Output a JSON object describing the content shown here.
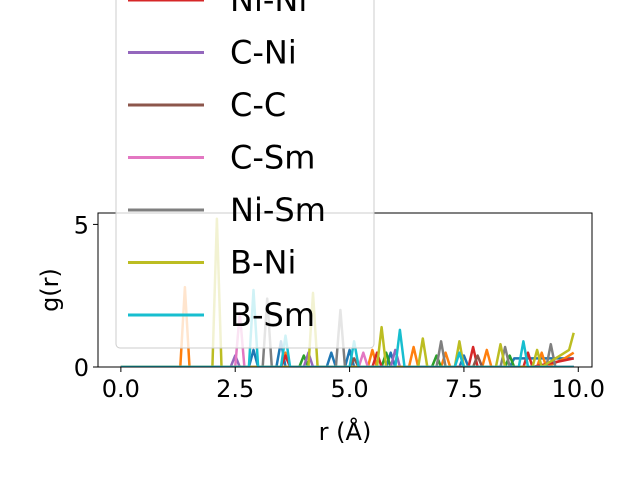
{
  "chart_data": {
    "type": "line",
    "title": "",
    "xlabel": "r (Å)",
    "ylabel": "g(r)",
    "xlim": [
      -0.5,
      10.3
    ],
    "ylim": [
      0,
      5.4
    ],
    "xticks": [
      0.0,
      2.5,
      5.0,
      7.5,
      10.0
    ],
    "xtick_labels": [
      "0.0",
      "2.5",
      "5.0",
      "7.5",
      "10.0"
    ],
    "yticks": [
      0,
      5
    ],
    "ytick_labels": [
      "0",
      "5"
    ],
    "grid": false,
    "legend_position": "upper-left",
    "series": [
      {
        "name": "",
        "color": "#1f77b4",
        "x": [
          0.0,
          2.8,
          2.9,
          3.0,
          3.1,
          3.4,
          3.5,
          3.6,
          4.5,
          4.6,
          4.7,
          4.9,
          5.0,
          5.1,
          5.8,
          5.9,
          6.0,
          6.1,
          7.4,
          7.5,
          7.6,
          8.5,
          8.6,
          9.9
        ],
        "y": [
          0.0,
          0.0,
          0.6,
          0.0,
          0.0,
          0.0,
          0.9,
          0.0,
          0.0,
          0.5,
          0.0,
          0.0,
          0.6,
          0.0,
          0.0,
          0.5,
          0.0,
          0.0,
          0.0,
          0.4,
          0.0,
          0.0,
          0.3,
          0.3
        ]
      },
      {
        "name": "",
        "color": "#ff7f0e",
        "x": [
          0.0,
          1.3,
          1.4,
          1.5,
          1.8,
          3.5,
          3.6,
          3.7,
          5.4,
          5.5,
          5.6,
          6.3,
          6.4,
          6.5,
          7.0,
          7.1,
          7.2,
          7.9,
          8.0,
          8.1,
          9.1,
          9.2,
          9.3,
          9.7,
          9.9
        ],
        "y": [
          0.0,
          0.0,
          2.8,
          0.0,
          0.0,
          0.0,
          0.5,
          0.0,
          0.0,
          0.6,
          0.0,
          0.0,
          0.7,
          0.0,
          0.0,
          0.5,
          0.0,
          0.0,
          0.6,
          0.0,
          0.0,
          0.5,
          0.0,
          0.3,
          0.5
        ]
      },
      {
        "name": "",
        "color": "#2ca02c",
        "x": [
          0.0,
          3.9,
          4.0,
          4.1,
          5.7,
          5.8,
          5.9,
          6.8,
          6.9,
          7.0,
          8.4,
          8.5,
          8.6,
          9.9
        ],
        "y": [
          0.0,
          0.0,
          0.4,
          0.0,
          0.0,
          0.5,
          0.0,
          0.0,
          0.4,
          0.0,
          0.0,
          0.4,
          0.0,
          0.0
        ]
      },
      {
        "name": "Ni-Ni",
        "color": "#d62728",
        "x": [
          0.0,
          3.5,
          3.6,
          3.7,
          5.5,
          5.6,
          5.7,
          7.6,
          7.7,
          7.8,
          8.8,
          8.9,
          9.0,
          9.9
        ],
        "y": [
          0.0,
          0.0,
          0.4,
          0.0,
          0.0,
          0.5,
          0.0,
          0.0,
          0.7,
          0.0,
          0.0,
          0.5,
          0.0,
          0.3
        ]
      },
      {
        "name": "C-Ni",
        "color": "#9467bd",
        "x": [
          0.0,
          2.4,
          2.5,
          2.6,
          4.0,
          4.1,
          4.2,
          5.9,
          6.0,
          6.1,
          9.9
        ],
        "y": [
          0.0,
          0.0,
          0.4,
          0.0,
          0.0,
          0.5,
          0.0,
          0.0,
          0.6,
          0.0,
          0.0
        ]
      },
      {
        "name": "C-C",
        "color": "#8c564b",
        "x": [
          0.0,
          5.0,
          5.1,
          5.2,
          7.7,
          7.8,
          7.9,
          9.9
        ],
        "y": [
          0.0,
          0.0,
          0.3,
          0.0,
          0.0,
          0.4,
          0.0,
          0.0
        ]
      },
      {
        "name": "C-Sm",
        "color": "#e377c2",
        "x": [
          0.0,
          2.5,
          2.6,
          2.7,
          5.2,
          5.3,
          5.4,
          9.9
        ],
        "y": [
          0.0,
          0.0,
          1.9,
          0.0,
          0.0,
          0.5,
          0.0,
          0.0
        ]
      },
      {
        "name": "Ni-Sm",
        "color": "#7f7f7f",
        "x": [
          0.0,
          3.1,
          3.2,
          3.3,
          4.7,
          4.8,
          4.9,
          6.9,
          7.0,
          7.1,
          8.3,
          8.4,
          8.5,
          9.3,
          9.4,
          9.5,
          9.9
        ],
        "y": [
          0.0,
          0.0,
          2.4,
          0.0,
          0.0,
          2.0,
          0.0,
          0.0,
          0.9,
          0.0,
          0.0,
          0.7,
          0.0,
          0.0,
          0.8,
          0.0,
          0.0
        ]
      },
      {
        "name": "B-Ni",
        "color": "#bcbd22",
        "x": [
          0.0,
          2.0,
          2.1,
          2.2,
          4.1,
          4.2,
          4.3,
          5.6,
          5.7,
          5.8,
          6.5,
          6.6,
          6.7,
          7.3,
          7.4,
          7.5,
          8.2,
          8.3,
          8.4,
          9.0,
          9.1,
          9.2,
          9.8,
          9.9
        ],
        "y": [
          0.0,
          0.0,
          5.2,
          0.0,
          0.0,
          2.6,
          0.0,
          0.0,
          1.4,
          0.0,
          0.0,
          1.0,
          0.0,
          0.0,
          0.9,
          0.0,
          0.0,
          0.8,
          0.0,
          0.0,
          0.6,
          0.0,
          0.6,
          1.2
        ]
      },
      {
        "name": "B-Sm",
        "color": "#17becf",
        "x": [
          0.0,
          2.8,
          2.9,
          3.0,
          3.5,
          3.6,
          3.7,
          5.0,
          5.1,
          5.2,
          6.0,
          6.1,
          6.2,
          7.3,
          7.4,
          7.5,
          8.7,
          8.8,
          8.9,
          9.9
        ],
        "y": [
          0.0,
          0.0,
          2.7,
          0.0,
          0.0,
          1.1,
          0.0,
          0.0,
          0.9,
          0.0,
          0.0,
          1.3,
          0.0,
          0.0,
          0.5,
          0.0,
          0.0,
          0.9,
          0.0,
          0.0
        ]
      }
    ]
  }
}
